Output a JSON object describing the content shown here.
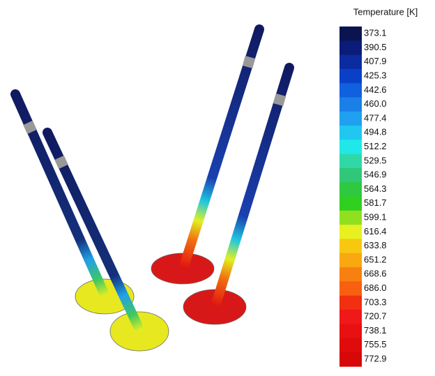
{
  "legend": {
    "title": "Temperature [K]",
    "labels": [
      "373.1",
      "390.5",
      "407.9",
      "425.3",
      "442.6",
      "460.0",
      "477.4",
      "494.8",
      "512.2",
      "529.5",
      "546.9",
      "564.3",
      "581.7",
      "599.1",
      "616.4",
      "633.8",
      "651.2",
      "668.6",
      "686.0",
      "703.3",
      "720.7",
      "738.1",
      "755.5",
      "772.9"
    ]
  }
}
